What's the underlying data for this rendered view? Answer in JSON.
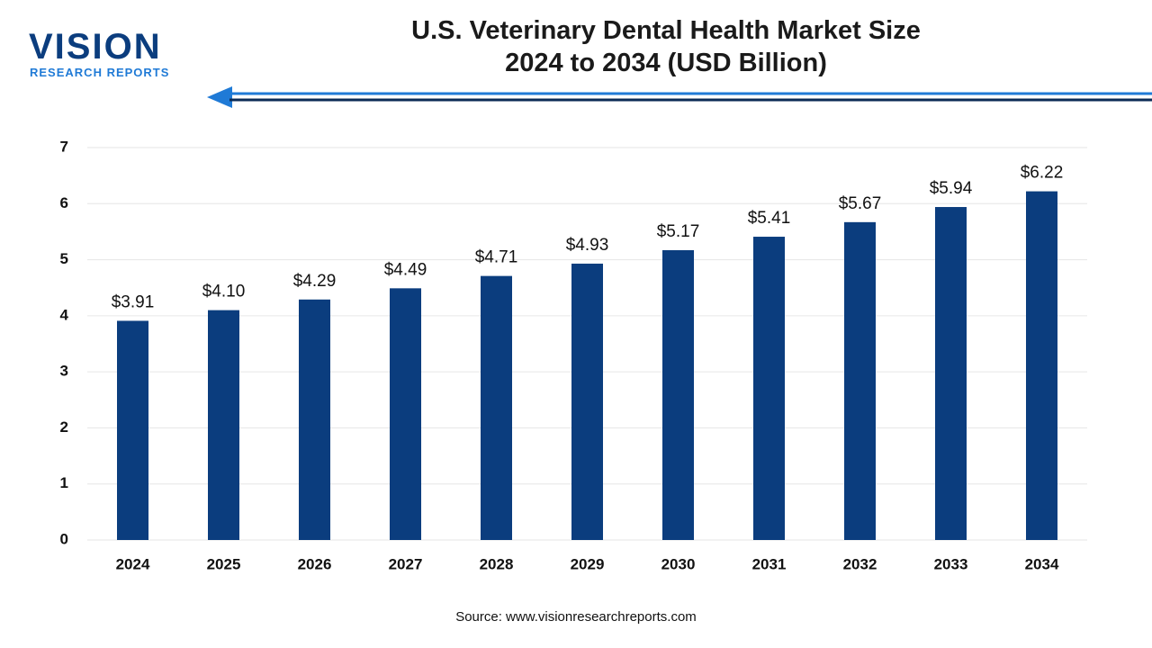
{
  "logo": {
    "name": "VISION",
    "tagline": "RESEARCH REPORTS"
  },
  "chart_data": {
    "type": "bar",
    "title": "U.S. Veterinary Dental Health Market Size 2024 to 2034 (USD Billion)",
    "categories": [
      "2024",
      "2025",
      "2026",
      "2027",
      "2028",
      "2029",
      "2030",
      "2031",
      "2032",
      "2033",
      "2034"
    ],
    "values": [
      3.91,
      4.1,
      4.29,
      4.49,
      4.71,
      4.93,
      5.17,
      5.41,
      5.67,
      5.94,
      6.22
    ],
    "value_labels": [
      "$3.91",
      "$4.10",
      "$4.29",
      "$4.49",
      "$4.71",
      "$4.93",
      "$5.17",
      "$5.41",
      "$5.67",
      "$5.94",
      "$6.22"
    ],
    "color": "#0b3d7e",
    "ylim": [
      0,
      7
    ],
    "yticks": [
      0,
      1,
      2,
      3,
      4,
      5,
      6,
      7
    ],
    "grid": true,
    "source": "Source: www.visionresearchreports.com"
  }
}
